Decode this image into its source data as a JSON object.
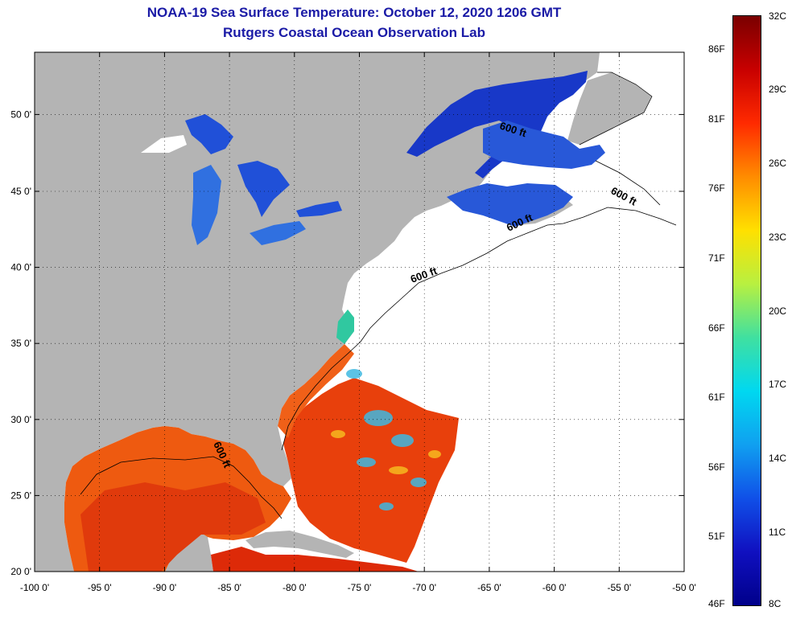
{
  "title": {
    "line1": "NOAA-19 Sea Surface Temperature:  October 12, 2020 1206 GMT",
    "line2": "Rutgers Coastal Ocean Observation Lab"
  },
  "map": {
    "x_ticks": [
      "-100 0'",
      "-95 0'",
      "-90 0'",
      "-85 0'",
      "-80 0'",
      "-75 0'",
      "-70 0'",
      "-65 0'",
      "-60 0'",
      "-55 0'",
      "-50 0'"
    ],
    "y_ticks": [
      "50 0'",
      "45 0'",
      "40 0'",
      "35 0'",
      "30 0'",
      "25 0'",
      "20 0'"
    ],
    "contour_labels": [
      "600 ft",
      "600 ft",
      "600 ft",
      "600 ft",
      "600 ft"
    ],
    "colors": {
      "land": "#b4b4b4",
      "cloud": "#ffffff",
      "gulf": "#ee5a10",
      "warm": "#dd2a08",
      "cold": "#1838c8"
    }
  },
  "colorbar": {
    "celsius": [
      "32C",
      "29C",
      "26C",
      "23C",
      "20C",
      "17C",
      "14C",
      "11C",
      "8C"
    ],
    "fahrenheit": [
      "86F",
      "81F",
      "76F",
      "71F",
      "66F",
      "61F",
      "56F",
      "51F",
      "46F"
    ],
    "stops": [
      "#7a0000",
      "#c80000",
      "#ff2a00",
      "#ff8c00",
      "#ffe000",
      "#b8f040",
      "#40e0a0",
      "#00d8f0",
      "#10a0f0",
      "#1050e8",
      "#1010c0",
      "#00008a"
    ]
  }
}
